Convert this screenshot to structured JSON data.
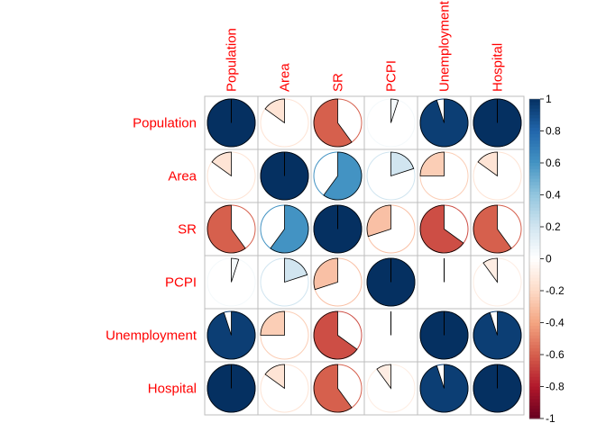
{
  "chart_data": {
    "type": "heatmap",
    "subtype": "correlation-pie",
    "variables": [
      "Population",
      "Area",
      "SR",
      "PCPI",
      "Unemployment",
      "Hospital"
    ],
    "matrix": [
      [
        1.0,
        -0.15,
        -0.6,
        0.05,
        0.95,
        1.0
      ],
      [
        -0.15,
        1.0,
        0.6,
        0.2,
        -0.25,
        -0.15
      ],
      [
        -0.6,
        0.6,
        1.0,
        -0.3,
        -0.65,
        -0.6
      ],
      [
        0.05,
        0.2,
        -0.3,
        1.0,
        0.0,
        -0.1
      ],
      [
        0.95,
        -0.25,
        -0.65,
        0.0,
        1.0,
        0.95
      ],
      [
        1.0,
        -0.15,
        -0.6,
        -0.1,
        0.95,
        1.0
      ]
    ],
    "colorbar": {
      "range": [
        -1,
        1
      ],
      "ticks": [
        "1",
        "0.8",
        "0.6",
        "0.4",
        "0.2",
        "0",
        "-0.2",
        "-0.4",
        "-0.6",
        "-0.8",
        "-1"
      ]
    },
    "label_color": "#ff0000",
    "grid": true
  }
}
